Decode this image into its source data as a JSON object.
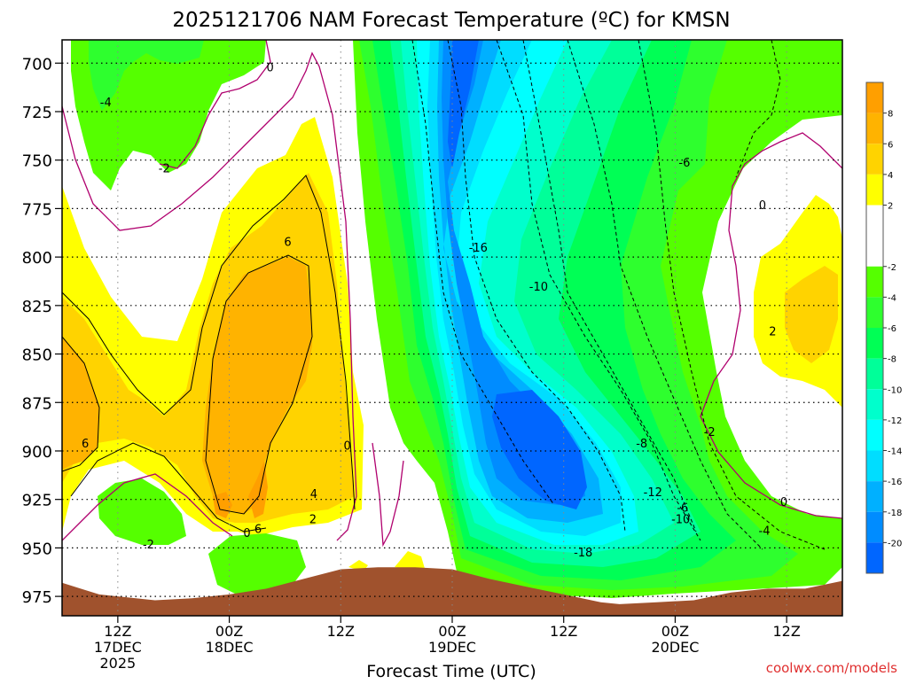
{
  "chart_data": {
    "type": "heatmap",
    "title": "2025121706 NAM Forecast Temperature (ºC) for KMSN",
    "xlabel": "Forecast Time (UTC)",
    "ylabel": "",
    "credit": "coolwx.com/models",
    "y_axis": {
      "range": [
        688,
        985
      ],
      "inverted": true,
      "ticks": [
        700,
        725,
        750,
        775,
        800,
        825,
        850,
        875,
        900,
        925,
        950,
        975
      ]
    },
    "x_axis": {
      "range_hours": [
        0,
        84
      ],
      "ticks": [
        {
          "hour": 6,
          "line1": "12Z",
          "line2": "17DEC",
          "line3": "2025"
        },
        {
          "hour": 18,
          "line1": "00Z",
          "line2": "18DEC",
          "line3": ""
        },
        {
          "hour": 30,
          "line1": "12Z",
          "line2": "",
          "line3": ""
        },
        {
          "hour": 42,
          "line1": "00Z",
          "line2": "19DEC",
          "line3": ""
        },
        {
          "hour": 54,
          "line1": "12Z",
          "line2": "",
          "line3": ""
        },
        {
          "hour": 66,
          "line1": "00Z",
          "line2": "20DEC",
          "line3": ""
        },
        {
          "hour": 78,
          "line1": "12Z",
          "line2": "",
          "line3": ""
        }
      ]
    },
    "grid": true,
    "colorbar": {
      "position": "right",
      "bands": [
        {
          "from": 8,
          "to": 10,
          "color": "#ff9f00"
        },
        {
          "from": 6,
          "to": 8,
          "color": "#ffb300"
        },
        {
          "from": 4,
          "to": 6,
          "color": "#ffd300"
        },
        {
          "from": 2,
          "to": 4,
          "color": "#ffff00"
        },
        {
          "from": -2,
          "to": 2,
          "color": "#ffffff"
        },
        {
          "from": -4,
          "to": -2,
          "color": "#55ff00"
        },
        {
          "from": -6,
          "to": -4,
          "color": "#2eff2e"
        },
        {
          "from": -8,
          "to": -6,
          "color": "#00ff55"
        },
        {
          "from": -10,
          "to": -8,
          "color": "#00ff99"
        },
        {
          "from": -12,
          "to": -10,
          "color": "#00ffcc"
        },
        {
          "from": -14,
          "to": -12,
          "color": "#00ffff"
        },
        {
          "from": -16,
          "to": -14,
          "color": "#00ddff"
        },
        {
          "from": -18,
          "to": -16,
          "color": "#00b0ff"
        },
        {
          "from": -20,
          "to": -18,
          "color": "#008cff"
        },
        {
          "from": -22,
          "to": -20,
          "color": "#0066ff"
        }
      ],
      "labels": [
        "8",
        "6",
        "4",
        "2",
        "-2",
        "-4",
        "-6",
        "-8",
        "-10",
        "-12",
        "-14",
        "-16",
        "-18",
        "-20"
      ]
    },
    "contour_labels": [
      {
        "text": "0",
        "hour": 22.4,
        "p": 702
      },
      {
        "text": "-4",
        "hour": 4.7,
        "p": 720
      },
      {
        "text": "-2",
        "hour": 11.0,
        "p": 754
      },
      {
        "text": "6",
        "hour": 24.3,
        "p": 792
      },
      {
        "text": "6",
        "hour": 2.5,
        "p": 896
      },
      {
        "text": "0",
        "hour": 30.7,
        "p": 897
      },
      {
        "text": "-16",
        "hour": 44.8,
        "p": 795
      },
      {
        "text": "-10",
        "hour": 51.3,
        "p": 815
      },
      {
        "text": "-6",
        "hour": 67.0,
        "p": 751
      },
      {
        "text": "0",
        "hour": 75.4,
        "p": 773
      },
      {
        "text": "2",
        "hour": 76.5,
        "p": 838
      },
      {
        "text": "-2",
        "hour": 69.7,
        "p": 890
      },
      {
        "text": "-8",
        "hour": 62.4,
        "p": 896
      },
      {
        "text": "-12",
        "hour": 63.6,
        "p": 921
      },
      {
        "text": "-6",
        "hour": 66.8,
        "p": 929
      },
      {
        "text": "-10",
        "hour": 66.6,
        "p": 935
      },
      {
        "text": "0",
        "hour": 77.7,
        "p": 926
      },
      {
        "text": "-4",
        "hour": 75.6,
        "p": 941
      },
      {
        "text": "-18",
        "hour": 56.1,
        "p": 952
      },
      {
        "text": "-2",
        "hour": 9.3,
        "p": 948
      },
      {
        "text": "4",
        "hour": 27.1,
        "p": 922
      },
      {
        "text": "2",
        "hour": 27.0,
        "p": 935
      },
      {
        "text": "6",
        "hour": 21.1,
        "p": 940
      },
      {
        "text": "0",
        "hour": 19.9,
        "p": 942
      }
    ],
    "terrain_surface": [
      {
        "hour": 0,
        "p": 968
      },
      {
        "hour": 2,
        "p": 971
      },
      {
        "hour": 4,
        "p": 974
      },
      {
        "hour": 6,
        "p": 975
      },
      {
        "hour": 10,
        "p": 977
      },
      {
        "hour": 14,
        "p": 976
      },
      {
        "hour": 18,
        "p": 974
      },
      {
        "hour": 22,
        "p": 971
      },
      {
        "hour": 26,
        "p": 966
      },
      {
        "hour": 30,
        "p": 961
      },
      {
        "hour": 34,
        "p": 960
      },
      {
        "hour": 38,
        "p": 960
      },
      {
        "hour": 42,
        "p": 961
      },
      {
        "hour": 46,
        "p": 966
      },
      {
        "hour": 50,
        "p": 970
      },
      {
        "hour": 54,
        "p": 974
      },
      {
        "hour": 58,
        "p": 978
      },
      {
        "hour": 60,
        "p": 979
      },
      {
        "hour": 64,
        "p": 978
      },
      {
        "hour": 68,
        "p": 977
      },
      {
        "hour": 72,
        "p": 973
      },
      {
        "hour": 76,
        "p": 971
      },
      {
        "hour": 80,
        "p": 971
      },
      {
        "hour": 84,
        "p": 967
      }
    ]
  }
}
